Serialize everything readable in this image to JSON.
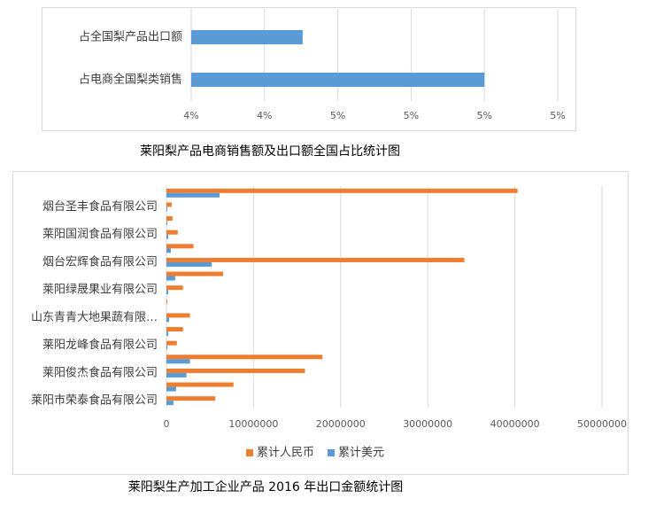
{
  "chart_data": [
    {
      "type": "barh",
      "title": "莱阳梨产品电商销售额及出口额全国占比统计图",
      "categories": [
        "占全国梨产品出口额",
        "占电商全国梨类销售"
      ],
      "values": [
        4.38,
        5.0
      ],
      "color": "#5b9bd5",
      "xlim": [
        4,
        5.25
      ],
      "xticks": [
        {
          "value": 4,
          "label": "4%"
        },
        {
          "value": 4.25,
          "label": "4%"
        },
        {
          "value": 4.5,
          "label": "5%"
        },
        {
          "value": 4.75,
          "label": "5%"
        },
        {
          "value": 5,
          "label": "5%"
        },
        {
          "value": 5.25,
          "label": "5%"
        }
      ],
      "grid": true
    },
    {
      "type": "barh",
      "title": "莱阳梨生产加工企业产品 2016 年出口金额统计图",
      "categories": [
        null,
        "烟台圣丰食品有限公司",
        null,
        "莱阳国润食品有限公司",
        null,
        "烟台宏辉食品有限公司",
        null,
        "莱阳绿晟果业有限公司",
        null,
        "山东青青大地果蔬有限…",
        null,
        "莱阳龙峰食品有限公司",
        null,
        "莱阳俊杰食品有限公司",
        null,
        "莱阳市荣泰食品有限公司"
      ],
      "series": [
        {
          "name": "累计人民币",
          "color": "#ed7d31",
          "values": [
            40300000,
            600000,
            700000,
            1300000,
            3100000,
            34200000,
            6500000,
            1900000,
            100000,
            2700000,
            1900000,
            1200000,
            17900000,
            15900000,
            7700000,
            5600000
          ]
        },
        {
          "name": "累计美元",
          "color": "#5b9bd5",
          "values": [
            6100000,
            100000,
            100000,
            200000,
            500000,
            5200000,
            1000000,
            200000,
            0,
            300000,
            200000,
            100000,
            2700000,
            2300000,
            1100000,
            800000
          ]
        }
      ],
      "xlim": [
        0,
        50000000
      ],
      "xticks": [
        0,
        10000000,
        20000000,
        30000000,
        40000000,
        50000000
      ],
      "grid": true,
      "legend": "bottom"
    }
  ]
}
